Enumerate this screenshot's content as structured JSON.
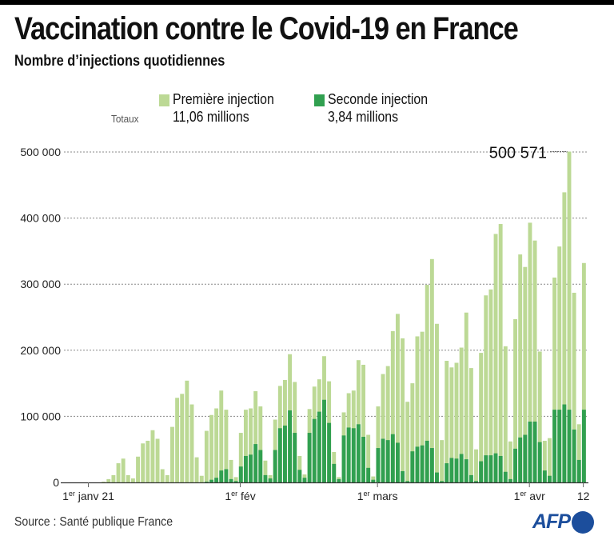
{
  "header": {
    "title": "Vaccination contre le Covid-19 en France",
    "subtitle": "Nombre d’injections quotidiennes"
  },
  "legend": {
    "totals_label": "Totaux",
    "items": [
      {
        "label": "Première injection",
        "total": "11,06 millions",
        "color": "#bcd995"
      },
      {
        "label": "Seconde injection",
        "total": "3,84 millions",
        "color": "#31a050"
      }
    ]
  },
  "footer": {
    "source": "Source : Santé publique France",
    "logo_text": "AFP",
    "logo_color": "#1c4e9c"
  },
  "chart_data": {
    "type": "bar",
    "stacking": "overlay",
    "title": "Vaccination contre le Covid-19 en France",
    "subtitle": "Nombre d’injections quotidiennes",
    "xlabel": "",
    "ylabel": "",
    "ylim": [
      0,
      500000
    ],
    "yticks": [
      0,
      100000,
      200000,
      300000,
      400000,
      500000
    ],
    "ytick_labels": [
      "0",
      "100 000",
      "200 000",
      "300 000",
      "400 000",
      "500 000"
    ],
    "grid": true,
    "x_start": "2020-12-27",
    "x_end": "2021-04-12",
    "xticks": [
      {
        "date": "2021-01-01",
        "label": "1er janv 21",
        "sup": "er",
        "pre": "1",
        "post": " janv 21"
      },
      {
        "date": "2021-02-01",
        "label": "1er fév",
        "sup": "er",
        "pre": "1",
        "post": " fév"
      },
      {
        "date": "2021-03-01",
        "label": "1er mars",
        "sup": "er",
        "pre": "1",
        "post": " mars"
      },
      {
        "date": "2021-04-01",
        "label": "1er avr",
        "sup": "er",
        "pre": "1",
        "post": " avr"
      },
      {
        "date": "2021-04-12",
        "label": "12",
        "sup": "",
        "pre": "12",
        "post": ""
      }
    ],
    "first_bar_date": "2021-01-04",
    "annotation": {
      "date": "2021-04-09",
      "value": 500571,
      "label": "500 571"
    },
    "series": [
      {
        "name": "Première injection",
        "color": "#bcd995",
        "note": "bar height = total daily injections (first-dose bar drawn behind)",
        "values": [
          1000,
          5000,
          11000,
          29000,
          36000,
          11000,
          6000,
          39000,
          59000,
          63000,
          79000,
          66000,
          20000,
          11000,
          84000,
          128000,
          134000,
          154000,
          118000,
          38000,
          10000,
          78000,
          102000,
          112000,
          139000,
          110000,
          34000,
          8000,
          75000,
          110000,
          112000,
          138000,
          115000,
          33000,
          11000,
          95000,
          146000,
          155000,
          194000,
          152000,
          40000,
          12000,
          111000,
          145000,
          156000,
          191000,
          153000,
          46000,
          8000,
          106000,
          135000,
          139000,
          185000,
          178000,
          72000,
          9000,
          115000,
          164000,
          176000,
          229000,
          255000,
          218000,
          122000,
          150000,
          221000,
          228000,
          299000,
          338000,
          240000,
          64000,
          184000,
          174000,
          181000,
          204000,
          257000,
          173000,
          50000,
          196000,
          283000,
          292000,
          376000,
          391000,
          206000,
          62000,
          247000,
          345000,
          326000,
          393000,
          366000,
          198000,
          63000,
          67000,
          310000,
          357000,
          439000,
          500571,
          287000,
          88000,
          332000
        ]
      },
      {
        "name": "Seconde injection",
        "color": "#31a050",
        "values": [
          0,
          0,
          0,
          0,
          0,
          0,
          0,
          0,
          0,
          0,
          0,
          0,
          0,
          0,
          0,
          0,
          0,
          0,
          0,
          0,
          0,
          1000,
          4000,
          7000,
          18000,
          20000,
          5000,
          2000,
          24000,
          40000,
          42000,
          58000,
          49000,
          11000,
          6000,
          49000,
          82000,
          86000,
          109000,
          75000,
          19000,
          7000,
          75000,
          96000,
          107000,
          125000,
          90000,
          28000,
          5000,
          71000,
          83000,
          82000,
          88000,
          69000,
          22000,
          4000,
          52000,
          66000,
          64000,
          73000,
          60000,
          17000,
          2000,
          47000,
          54000,
          56000,
          63000,
          52000,
          15000,
          2000,
          29000,
          37000,
          36000,
          43000,
          35000,
          11000,
          2000,
          32000,
          41000,
          41000,
          44000,
          40000,
          16000,
          5000,
          51000,
          68000,
          72000,
          92000,
          92000,
          61000,
          18000,
          10000,
          110000,
          110000,
          118000,
          110000,
          80000,
          34000,
          110000
        ]
      }
    ]
  }
}
